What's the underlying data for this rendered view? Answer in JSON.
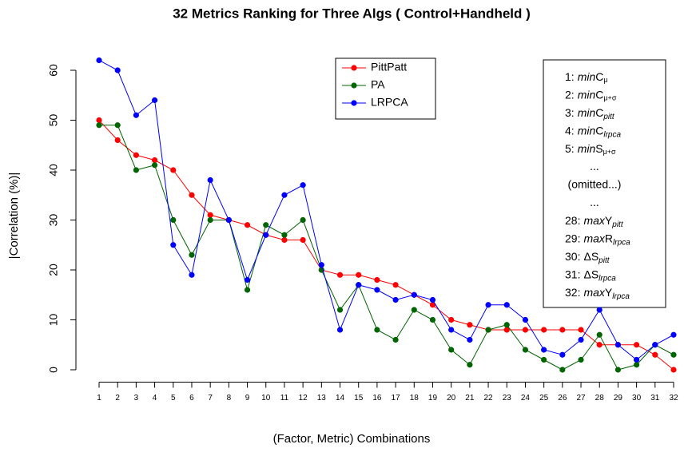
{
  "chart_data": {
    "type": "line",
    "title": "32 Metrics Ranking for Three Algs ( Control+Handheld )",
    "x_label": "(Factor, Metric) Combinations",
    "y_label": "|Correlation (%)|",
    "x": [
      1,
      2,
      3,
      4,
      5,
      6,
      7,
      8,
      9,
      10,
      11,
      12,
      13,
      14,
      15,
      16,
      17,
      18,
      19,
      20,
      21,
      22,
      23,
      24,
      25,
      26,
      27,
      28,
      29,
      30,
      31,
      32
    ],
    "xlim": [
      -0.2,
      33.3
    ],
    "xticks": [
      1,
      2,
      3,
      4,
      5,
      6,
      7,
      8,
      9,
      10,
      11,
      12,
      13,
      14,
      15,
      16,
      17,
      18,
      19,
      20,
      21,
      22,
      23,
      24,
      25,
      26,
      27,
      28,
      29,
      30,
      31,
      32
    ],
    "ylim": [
      -2.48,
      64.48
    ],
    "yticks": [
      0,
      10,
      20,
      30,
      40,
      50,
      60
    ],
    "series": [
      {
        "name": "PittPatt",
        "color": "#ff0000",
        "values": [
          50,
          46,
          43,
          42,
          40,
          35,
          31,
          30,
          29,
          27,
          26,
          26,
          20,
          19,
          19,
          18,
          17,
          15,
          13,
          10,
          9,
          8,
          8,
          8,
          8,
          8,
          8,
          5,
          5,
          5,
          3,
          0
        ]
      },
      {
        "name": "PA",
        "color": "#006400",
        "values": [
          49,
          49,
          40,
          41,
          30,
          23,
          30,
          30,
          16,
          29,
          27,
          30,
          20,
          12,
          17,
          8,
          6,
          12,
          10,
          4,
          1,
          8,
          9,
          4,
          2,
          0,
          2,
          7,
          0,
          1,
          5,
          3
        ]
      },
      {
        "name": "LRPCA",
        "color": "#0000ff",
        "values": [
          62,
          60,
          51,
          54,
          25,
          19,
          38,
          30,
          18,
          27,
          35,
          37,
          21,
          8,
          17,
          16,
          14,
          15,
          14,
          8,
          6,
          13,
          13,
          10,
          4,
          3,
          6,
          12,
          5,
          2,
          5,
          7
        ]
      }
    ],
    "annotations": [
      {
        "num": "1:",
        "fn": "min",
        "var": "C",
        "sub": "μ"
      },
      {
        "num": "2:",
        "fn": "min",
        "var": "C",
        "sub": "μ+σ"
      },
      {
        "num": "3:",
        "fn": "min",
        "var": "C",
        "sub": "pitt"
      },
      {
        "num": "4:",
        "fn": "min",
        "var": "C",
        "sub": "lrpca"
      },
      {
        "num": "5:",
        "fn": "min",
        "var": "S",
        "sub": "μ+σ"
      },
      {
        "text": "..."
      },
      {
        "text": "(omitted...)"
      },
      {
        "text": "..."
      },
      {
        "num": "28:",
        "fn": "max",
        "var": "Y",
        "sub": "pitt"
      },
      {
        "num": "29:",
        "fn": "max",
        "var": "R",
        "sub": "lrpca"
      },
      {
        "num": "30:",
        "var": "ΔS",
        "sub": "pitt"
      },
      {
        "num": "31:",
        "var": "ΔS",
        "sub": "lrpca"
      },
      {
        "num": "32:",
        "fn": "max",
        "var": "Y",
        "sub": "lrpca"
      }
    ]
  }
}
